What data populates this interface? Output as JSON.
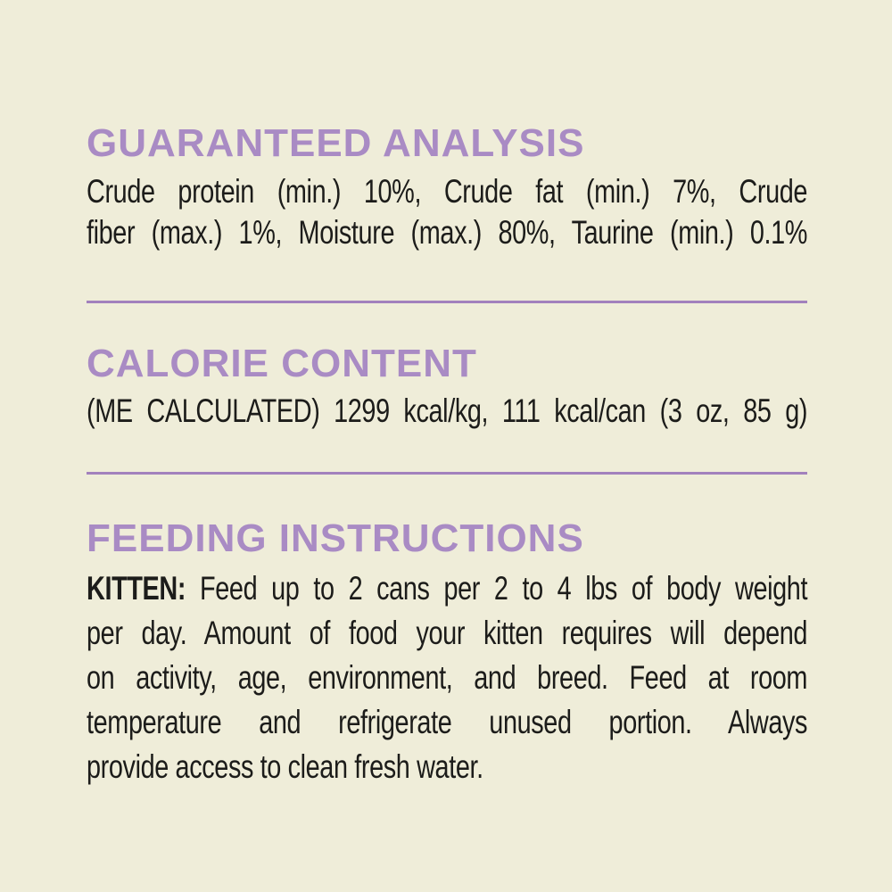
{
  "label": {
    "background_color": "#EFEDD9",
    "heading_color": "#A98BC4",
    "divider_color": "#A281BD",
    "text_color": "#1C1C1A",
    "guaranteed_analysis": {
      "heading": "GUARANTEED ANALYSIS",
      "lines": [
        "Crude protein (min.) 10%, Crude fat (min.) 7%, Crude",
        "fiber (max.) 1%, Moisture (max.) 80%, Taurine (min.) 0.1%"
      ]
    },
    "calorie_content": {
      "heading": "CALORIE CONTENT",
      "line": "(ME CALCULATED) 1299 kcal/kg, 111 kcal/can (3 oz, 85 g)"
    },
    "feeding_instructions": {
      "heading": "FEEDING INSTRUCTIONS",
      "kitten_label": "KITTEN:",
      "line1_rest": "Feed up to 2 cans per 2 to 4 lbs of body weight",
      "lines": [
        "per day. Amount of food your kitten requires will depend",
        "on activity, age, environment, and breed. Feed at room",
        "temperature and refrigerate unused portion. Always",
        "provide access to clean fresh water."
      ]
    }
  }
}
